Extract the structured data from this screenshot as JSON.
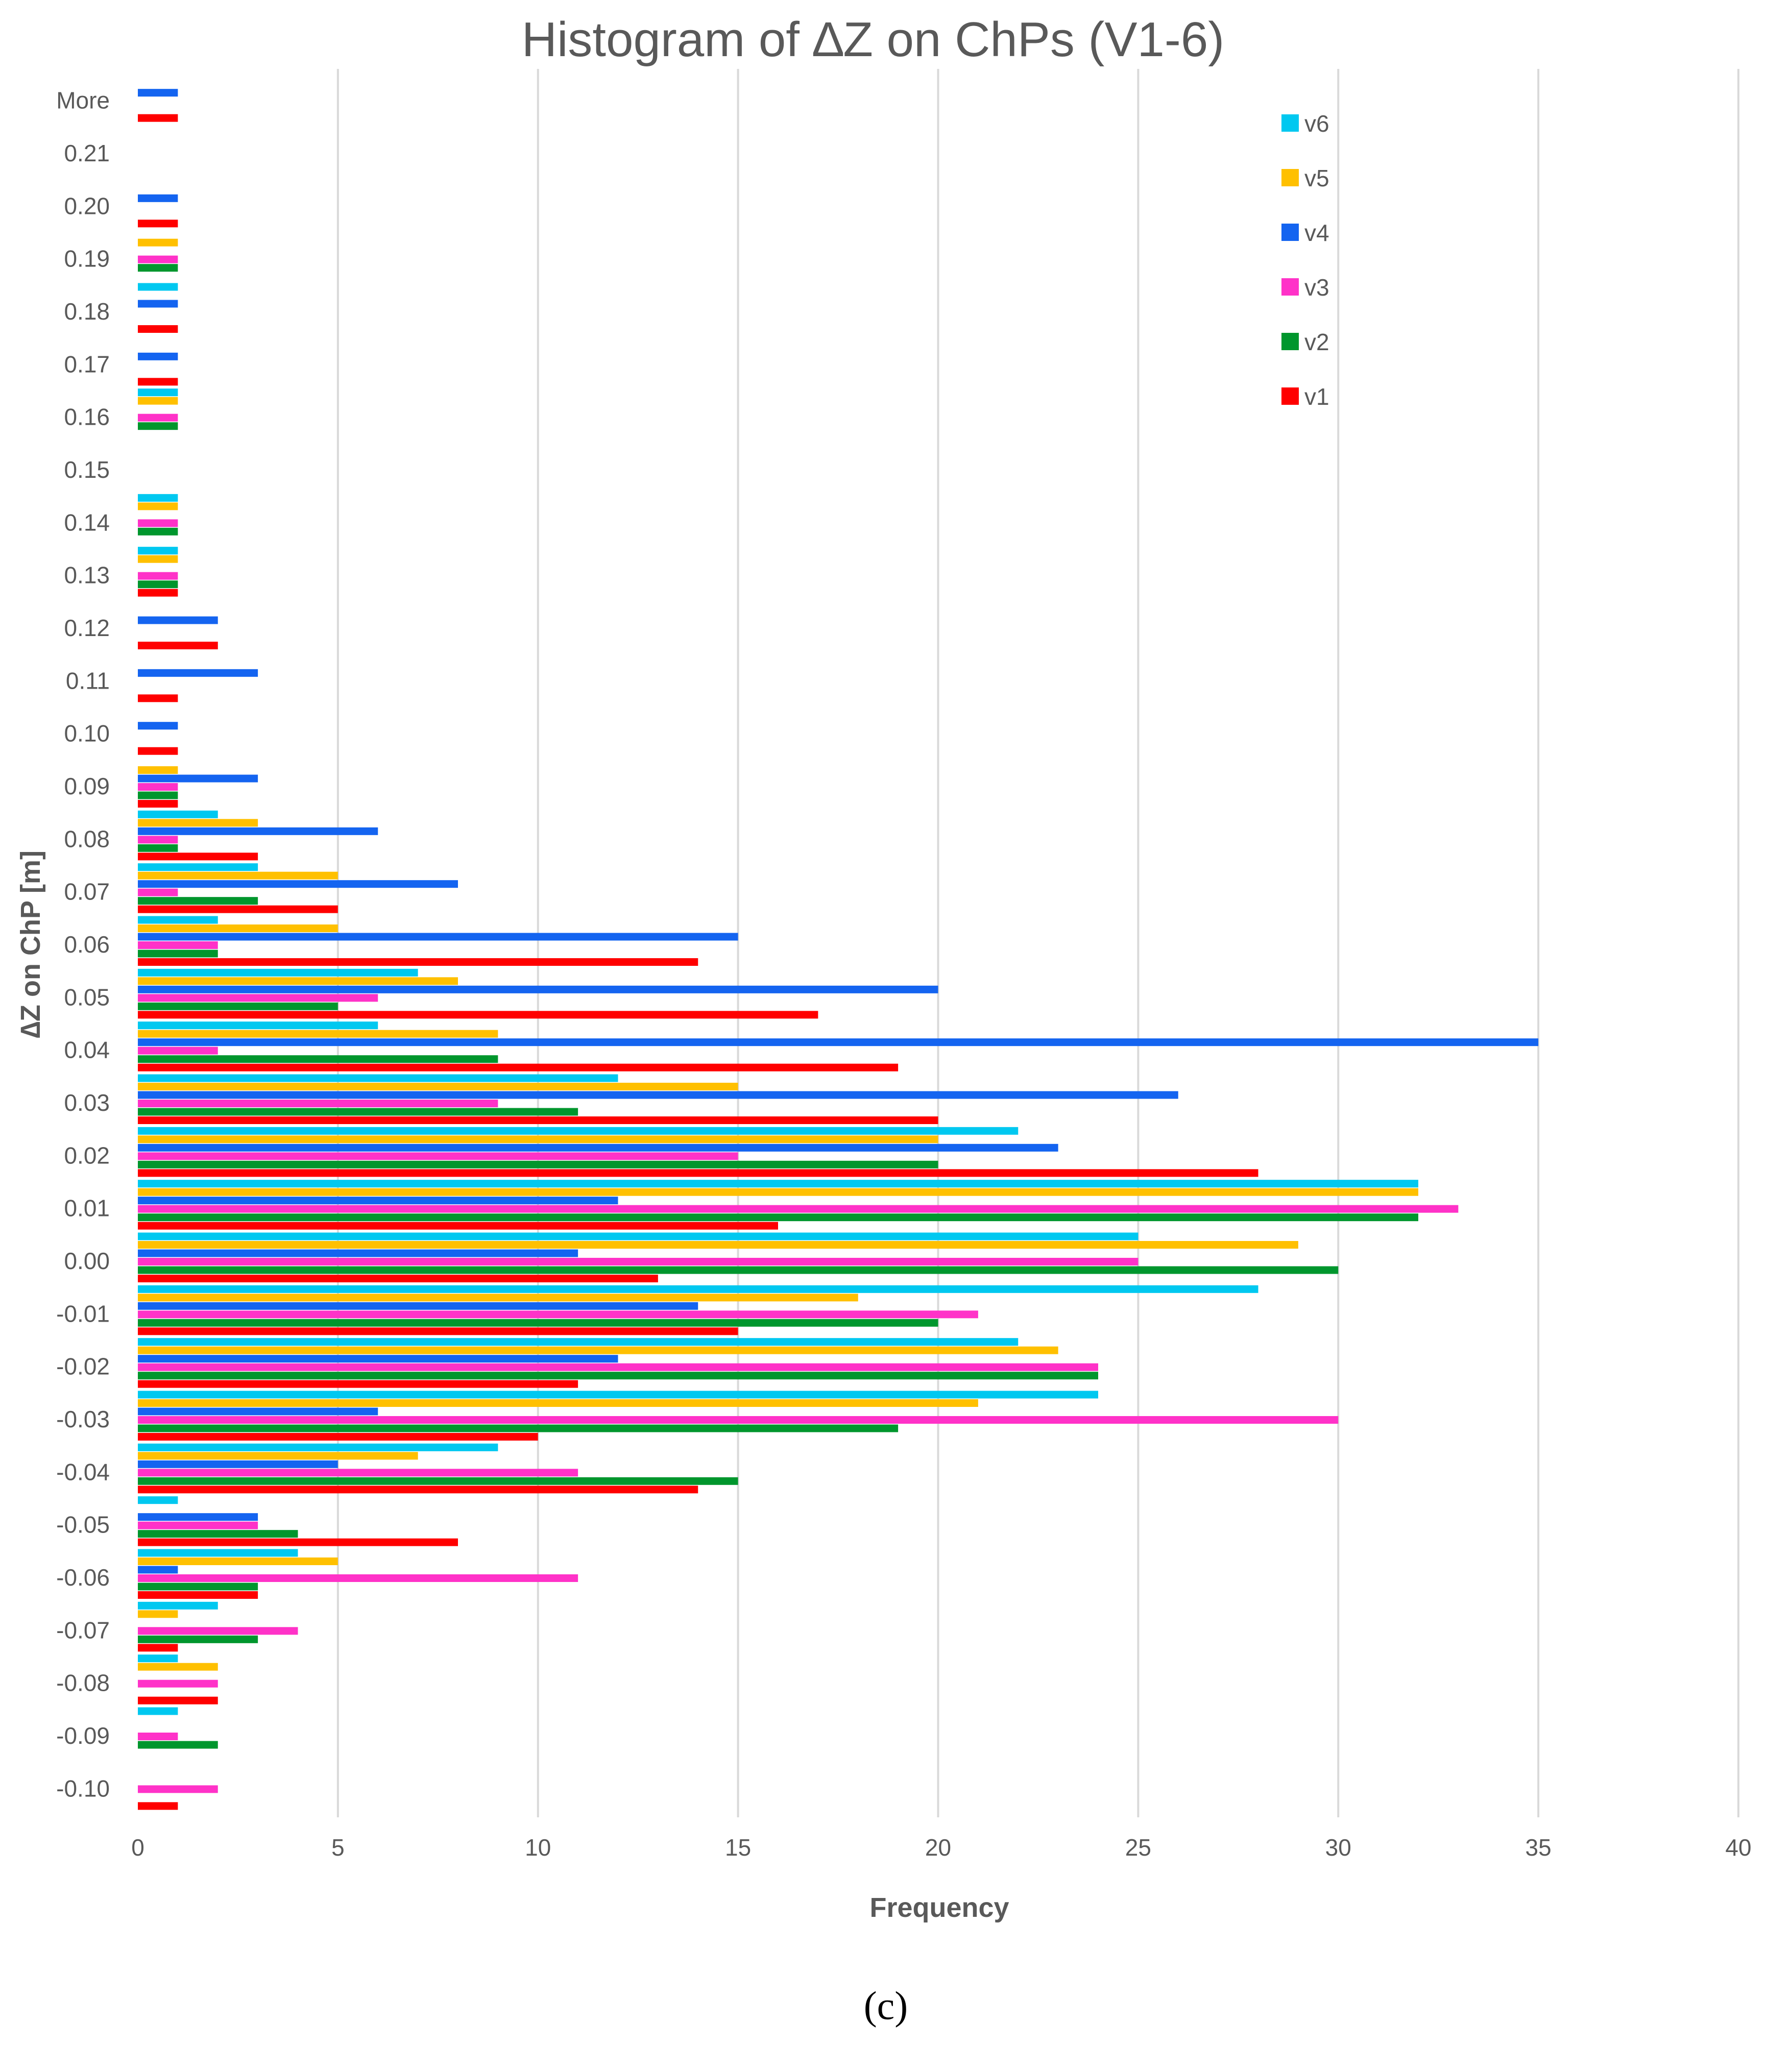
{
  "chart_data": {
    "type": "bar",
    "orientation": "horizontal",
    "title": "Histogram of ∆Z on ChPs (V1-6)",
    "xlabel": "Frequency",
    "ylabel": "∆Z on ChP [m]",
    "xlim": [
      0,
      40
    ],
    "x_ticks": [
      "0",
      "5",
      "10",
      "15",
      "20",
      "25",
      "30",
      "35",
      "40"
    ],
    "grid": "vertical",
    "legend_position": "top-right",
    "panel_label": "(c)",
    "categories": [
      "More",
      "0.21",
      "0.20",
      "0.19",
      "0.18",
      "0.17",
      "0.16",
      "0.15",
      "0.14",
      "0.13",
      "0.12",
      "0.11",
      "0.10",
      "0.09",
      "0.08",
      "0.07",
      "0.06",
      "0.05",
      "0.04",
      "0.03",
      "0.02",
      "0.01",
      "0.00",
      "-0.01",
      "-0.02",
      "-0.03",
      "-0.04",
      "-0.05",
      "-0.06",
      "-0.07",
      "-0.08",
      "-0.09",
      "-0.10"
    ],
    "series": [
      {
        "name": "v6",
        "color": "#00c8f0",
        "values": [
          0,
          0,
          0,
          0,
          1,
          0,
          1,
          0,
          1,
          1,
          0,
          0,
          0,
          0,
          2,
          3,
          2,
          7,
          6,
          12,
          22,
          32,
          25,
          28,
          22,
          24,
          9,
          1,
          4,
          2,
          1,
          1,
          0
        ]
      },
      {
        "name": "v5",
        "color": "#ffc000",
        "values": [
          0,
          0,
          0,
          1,
          0,
          0,
          1,
          0,
          1,
          1,
          0,
          0,
          0,
          1,
          3,
          5,
          5,
          8,
          9,
          15,
          20,
          32,
          29,
          18,
          23,
          21,
          7,
          0,
          5,
          1,
          2,
          0,
          0
        ]
      },
      {
        "name": "v4",
        "color": "#1464f0",
        "values": [
          1,
          0,
          1,
          0,
          1,
          1,
          0,
          0,
          0,
          0,
          2,
          3,
          1,
          3,
          6,
          8,
          15,
          20,
          35,
          26,
          23,
          12,
          11,
          14,
          12,
          6,
          5,
          3,
          1,
          0,
          0,
          0,
          0
        ]
      },
      {
        "name": "v3",
        "color": "#ff32c8",
        "values": [
          0,
          0,
          0,
          1,
          0,
          0,
          1,
          0,
          1,
          1,
          0,
          0,
          0,
          1,
          1,
          1,
          2,
          6,
          2,
          9,
          15,
          33,
          25,
          21,
          24,
          30,
          11,
          3,
          11,
          4,
          2,
          1,
          2
        ]
      },
      {
        "name": "v2",
        "color": "#00962d",
        "values": [
          0,
          0,
          0,
          1,
          0,
          0,
          1,
          0,
          1,
          1,
          0,
          0,
          0,
          1,
          1,
          3,
          2,
          5,
          9,
          11,
          20,
          32,
          30,
          20,
          24,
          19,
          15,
          4,
          3,
          3,
          0,
          2,
          0
        ]
      },
      {
        "name": "v1",
        "color": "#ff0000",
        "values": [
          1,
          0,
          1,
          0,
          1,
          1,
          0,
          0,
          0,
          1,
          2,
          1,
          1,
          1,
          3,
          5,
          14,
          17,
          19,
          20,
          28,
          16,
          13,
          15,
          11,
          10,
          14,
          8,
          3,
          1,
          2,
          0,
          1
        ]
      }
    ]
  }
}
